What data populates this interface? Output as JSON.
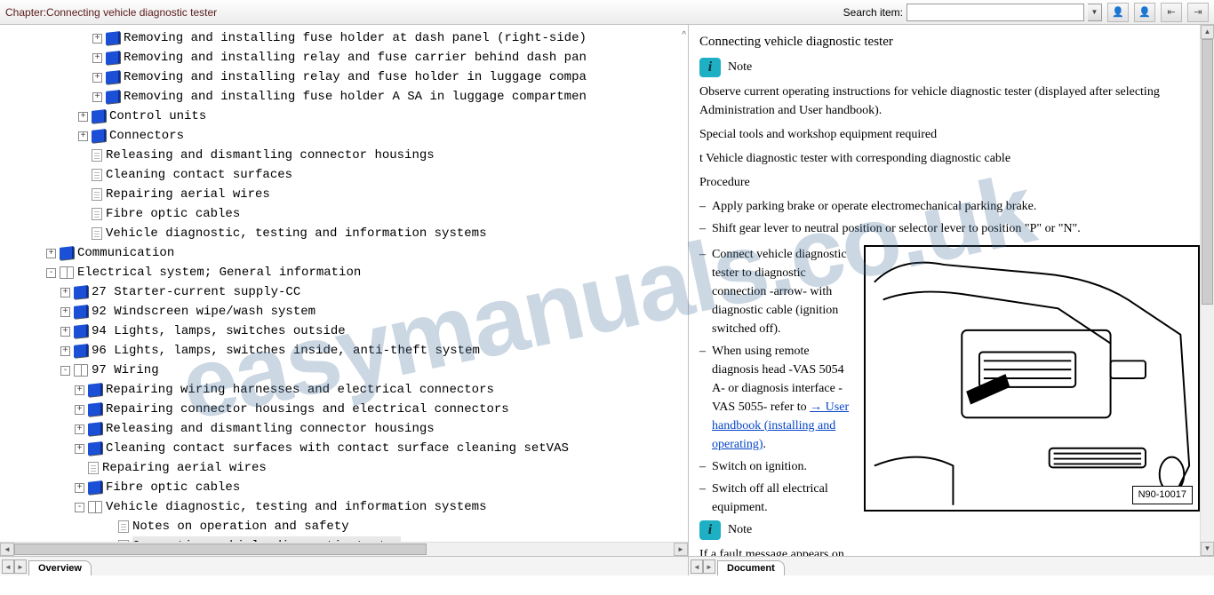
{
  "toolbar": {
    "chapter_label": "Chapter:Connecting vehicle diagnostic tester",
    "search_label": "Search item:",
    "search_value": ""
  },
  "tree": {
    "overview_tab": "Overview",
    "rows": [
      {
        "lvl": "ind1",
        "exp": "+",
        "ico": "book-closed",
        "txt": "Removing and installing fuse holder at dash panel (right-side)",
        "trunc": true
      },
      {
        "lvl": "ind1",
        "exp": "+",
        "ico": "book-closed",
        "txt": "Removing and installing relay and fuse carrier behind dash pan",
        "trunc": true
      },
      {
        "lvl": "ind1",
        "exp": "+",
        "ico": "book-closed",
        "txt": "Removing and installing relay and fuse holder in luggage compa",
        "trunc": true
      },
      {
        "lvl": "ind1",
        "exp": "+",
        "ico": "book-closed",
        "txt": "Removing and installing fuse holder A SA in luggage compartmen",
        "trunc": true
      },
      {
        "lvl": "ind0b",
        "exp": "+",
        "ico": "book-closed",
        "txt": "Control units"
      },
      {
        "lvl": "ind0b",
        "exp": "+",
        "ico": "book-closed",
        "txt": "Connectors"
      },
      {
        "lvl": "ind0b",
        "exp": " ",
        "ico": "doc",
        "txt": "Releasing and dismantling connector housings"
      },
      {
        "lvl": "ind0b",
        "exp": " ",
        "ico": "doc",
        "txt": "Cleaning contact surfaces"
      },
      {
        "lvl": "ind0b",
        "exp": " ",
        "ico": "doc",
        "txt": "Repairing aerial wires"
      },
      {
        "lvl": "ind0b",
        "exp": " ",
        "ico": "doc",
        "txt": "Fibre optic cables"
      },
      {
        "lvl": "ind0b",
        "exp": " ",
        "ico": "doc",
        "txt": "Vehicle diagnostic, testing and information systems"
      },
      {
        "lvl": "ind0",
        "exp": "+",
        "ico": "book-closed",
        "txt": "Communication"
      },
      {
        "lvl": "ind0",
        "exp": "-",
        "ico": "book-open",
        "txt": "Electrical system; General information"
      },
      {
        "lvl": "ind2",
        "exp": "+",
        "ico": "book-closed",
        "txt": "27 Starter-current supply-CC"
      },
      {
        "lvl": "ind2",
        "exp": "+",
        "ico": "book-closed",
        "txt": "92 Windscreen wipe/wash system"
      },
      {
        "lvl": "ind2",
        "exp": "+",
        "ico": "book-closed",
        "txt": "94 Lights, lamps, switches outside"
      },
      {
        "lvl": "ind2",
        "exp": "+",
        "ico": "book-closed",
        "txt": "96 Lights, lamps, switches inside, anti-theft system"
      },
      {
        "lvl": "ind2",
        "exp": "-",
        "ico": "book-open",
        "txt": "97 Wiring"
      },
      {
        "lvl": "ind3",
        "exp": "+",
        "ico": "book-closed",
        "txt": "Repairing wiring harnesses and electrical connectors"
      },
      {
        "lvl": "ind3",
        "exp": "+",
        "ico": "book-closed",
        "txt": "Repairing connector housings and electrical connectors"
      },
      {
        "lvl": "ind3",
        "exp": "+",
        "ico": "book-closed",
        "txt": "Releasing and dismantling connector housings"
      },
      {
        "lvl": "ind3",
        "exp": "+",
        "ico": "book-closed",
        "txt": "Cleaning contact surfaces with contact surface cleaning setVAS ",
        "trunc": true
      },
      {
        "lvl": "ind3",
        "exp": " ",
        "ico": "doc",
        "txt": "Repairing aerial wires"
      },
      {
        "lvl": "ind3",
        "exp": "+",
        "ico": "book-closed",
        "txt": "Fibre optic cables"
      },
      {
        "lvl": "ind3",
        "exp": "-",
        "ico": "book-open",
        "txt": "Vehicle diagnostic, testing and information systems"
      },
      {
        "lvl": "ind4",
        "exp": " ",
        "ico": "doc",
        "txt": "Notes on operation and safety"
      },
      {
        "lvl": "ind4",
        "exp": " ",
        "ico": "doc",
        "txt": "Connecting vehicle diagnostic tester",
        "sel": true
      }
    ]
  },
  "doc": {
    "document_tab": "Document",
    "title": "Connecting vehicle diagnostic tester",
    "note_label": "Note",
    "note1": "Observe current operating instructions for vehicle diagnostic tester (displayed after selecting Administration and User handbook).",
    "tools_heading": "Special tools and workshop equipment required",
    "tools_item": "t  Vehicle diagnostic tester with corresponding diagnostic cable",
    "procedure_heading": "Procedure",
    "step1": "Apply parking brake or operate electromechanical parking brake.",
    "step2": "Shift gear lever to neutral position or selector lever to position \"P\" or \"N\".",
    "step3": "Connect vehicle diagnostic tester to diagnostic connection -arrow- with diagnostic cable (ignition switched off).",
    "step4_pre": "When using remote diagnosis head -VAS 5054 A- or diagnosis interface -VAS 5055- refer to ",
    "step4_link": "→  User handbook (installing and operating)",
    "step4_post": ".",
    "step5": "Switch on ignition.",
    "step6": "Switch off all electrical equipment.",
    "note2_pre": "If a fault message appears on the screen of the vehicle",
    "figure_label": "N90-10017"
  },
  "watermark": "easymanuals.co.uk",
  "colors": {
    "book_blue": "#1a4fd6",
    "note_teal": "#1db0c4",
    "link": "#0645c8",
    "chapter_text": "#5a1a1a",
    "watermark": "rgba(70,110,150,0.28)"
  }
}
